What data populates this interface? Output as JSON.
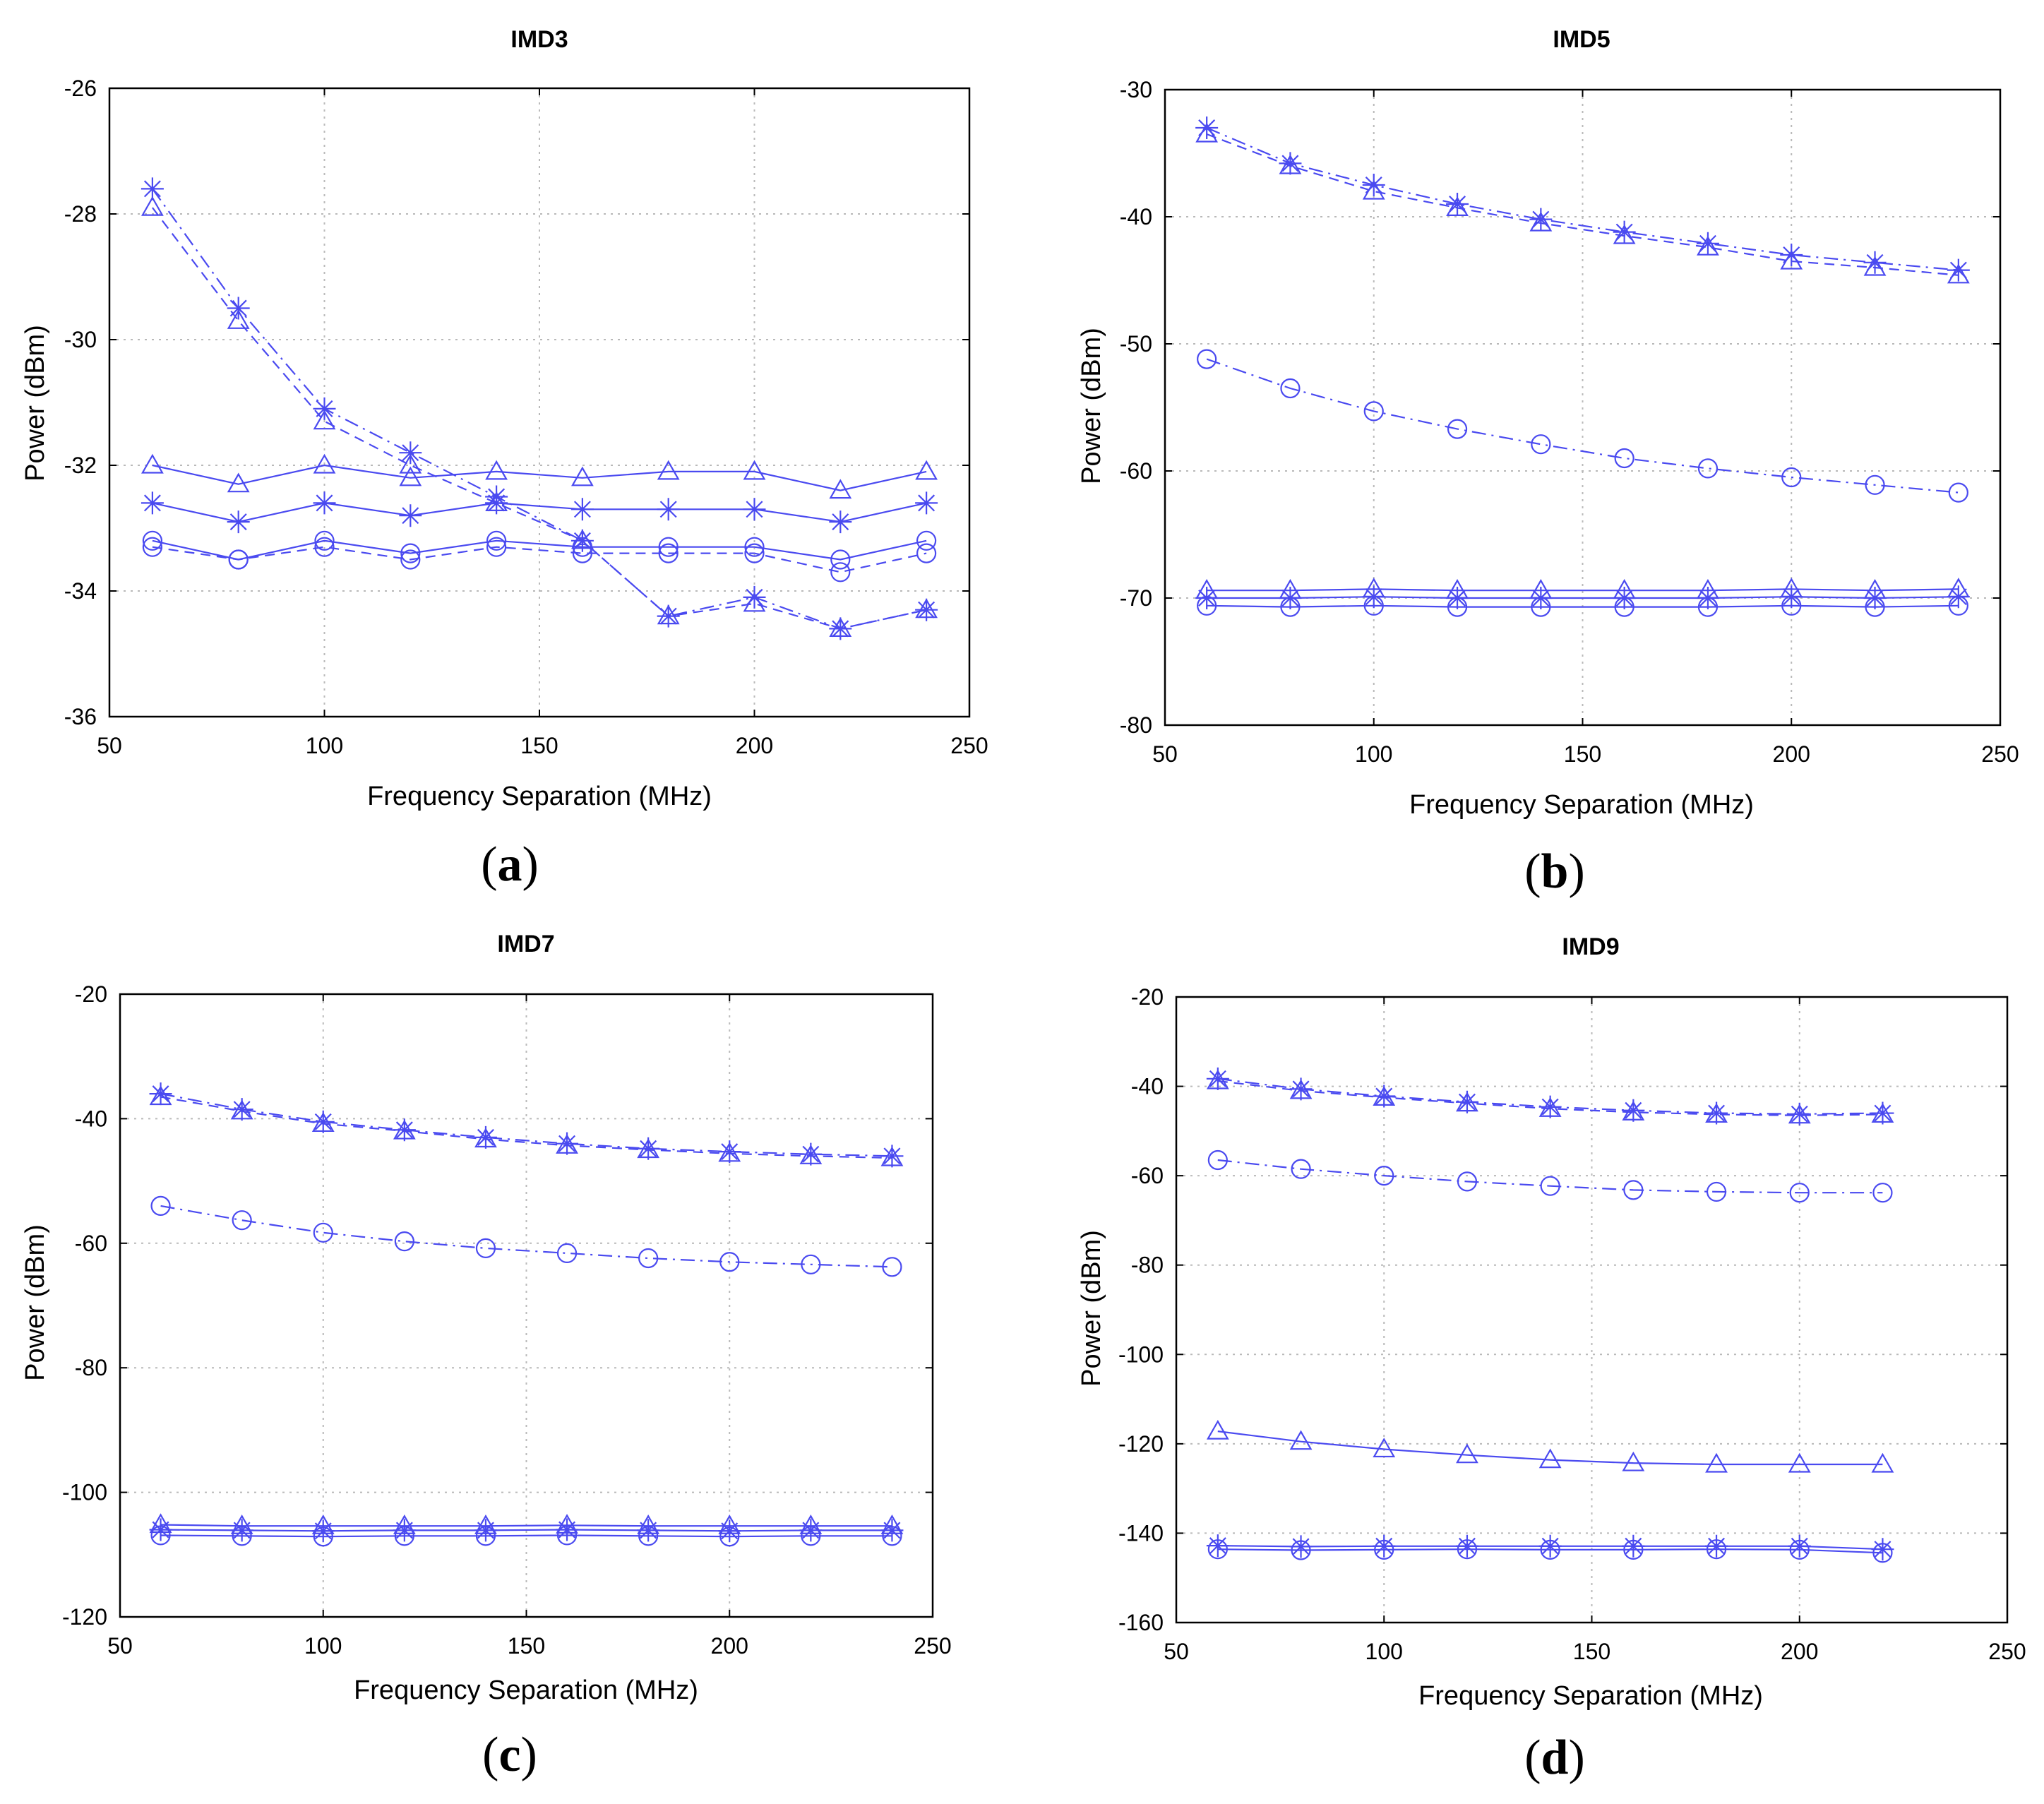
{
  "figure": {
    "panel_labels": [
      "a",
      "b",
      "c",
      "d"
    ],
    "series_color": "#4a4af0"
  },
  "chart_data": [
    {
      "type": "line",
      "title": "IMD3",
      "xlabel": "Frequency Separation (MHz)",
      "ylabel": "Power (dBm)",
      "xlim": [
        50,
        250
      ],
      "ylim": [
        -36,
        -26
      ],
      "xticks": [
        50,
        100,
        150,
        200,
        250
      ],
      "yticks": [
        -36,
        -34,
        -32,
        -30,
        -28,
        -26
      ],
      "grid": true,
      "x": [
        60,
        80,
        100,
        120,
        140,
        160,
        180,
        200,
        220,
        240
      ],
      "series": [
        {
          "name": "triangle-dashed",
          "marker": "triangle",
          "line": "dashed",
          "values": [
            -27.9,
            -29.7,
            -31.3,
            -32.0,
            -32.6,
            -33.2,
            -34.4,
            -34.2,
            -34.6,
            -34.3
          ]
        },
        {
          "name": "star-dashdot",
          "marker": "star",
          "line": "dashdot",
          "values": [
            -27.6,
            -29.5,
            -31.1,
            -31.8,
            -32.5,
            -33.2,
            -34.4,
            -34.1,
            -34.6,
            -34.3
          ]
        },
        {
          "name": "triangle-solid",
          "marker": "triangle",
          "line": "solid",
          "values": [
            -32.0,
            -32.3,
            -32.0,
            -32.2,
            -32.1,
            -32.2,
            -32.1,
            -32.1,
            -32.4,
            -32.1
          ]
        },
        {
          "name": "star-solid",
          "marker": "star",
          "line": "solid",
          "values": [
            -32.6,
            -32.9,
            -32.6,
            -32.8,
            -32.6,
            -32.7,
            -32.7,
            -32.7,
            -32.9,
            -32.6
          ]
        },
        {
          "name": "circle-solid",
          "marker": "circle",
          "line": "solid",
          "values": [
            -33.2,
            -33.5,
            -33.2,
            -33.4,
            -33.2,
            -33.3,
            -33.3,
            -33.3,
            -33.5,
            -33.2
          ]
        },
        {
          "name": "circle-dashed",
          "marker": "circle",
          "line": "dashed",
          "values": [
            -33.3,
            -33.5,
            -33.3,
            -33.5,
            -33.3,
            -33.4,
            -33.4,
            -33.4,
            -33.7,
            -33.4
          ]
        }
      ]
    },
    {
      "type": "line",
      "title": "IMD5",
      "xlabel": "Frequency Separation (MHz)",
      "ylabel": "Power (dBm)",
      "xlim": [
        50,
        250
      ],
      "ylim": [
        -80,
        -30
      ],
      "xticks": [
        50,
        100,
        150,
        200,
        250
      ],
      "yticks": [
        -80,
        -70,
        -60,
        -50,
        -40,
        -30
      ],
      "grid": true,
      "x": [
        60,
        80,
        100,
        120,
        140,
        160,
        180,
        200,
        220,
        240
      ],
      "series": [
        {
          "name": "triangle-dashed",
          "marker": "triangle",
          "line": "dashed",
          "values": [
            -33.5,
            -36.0,
            -38.0,
            -39.3,
            -40.5,
            -41.5,
            -42.4,
            -43.5,
            -44.0,
            -44.6
          ]
        },
        {
          "name": "star-dashdot",
          "marker": "star",
          "line": "dashdot",
          "values": [
            -33.0,
            -35.8,
            -37.5,
            -39.0,
            -40.2,
            -41.2,
            -42.1,
            -43.0,
            -43.6,
            -44.2
          ]
        },
        {
          "name": "circle-dashdot",
          "marker": "circle",
          "line": "dashdot",
          "values": [
            -51.2,
            -53.5,
            -55.3,
            -56.7,
            -57.9,
            -59.0,
            -59.8,
            -60.5,
            -61.1,
            -61.7
          ]
        },
        {
          "name": "triangle-solid",
          "marker": "triangle",
          "line": "solid",
          "values": [
            -69.4,
            -69.4,
            -69.3,
            -69.4,
            -69.4,
            -69.4,
            -69.4,
            -69.3,
            -69.4,
            -69.3
          ]
        },
        {
          "name": "star-solid",
          "marker": "star",
          "line": "solid",
          "values": [
            -70.0,
            -70.0,
            -69.9,
            -70.0,
            -70.0,
            -70.0,
            -70.0,
            -69.9,
            -70.0,
            -69.9
          ]
        },
        {
          "name": "circle-solid",
          "marker": "circle",
          "line": "solid",
          "values": [
            -70.6,
            -70.7,
            -70.6,
            -70.7,
            -70.7,
            -70.7,
            -70.7,
            -70.6,
            -70.7,
            -70.6
          ]
        }
      ]
    },
    {
      "type": "line",
      "title": "IMD7",
      "xlabel": "Frequency Separation (MHz)",
      "ylabel": "Power (dBm)",
      "xlim": [
        50,
        250
      ],
      "ylim": [
        -120,
        -20
      ],
      "xticks": [
        50,
        100,
        150,
        200,
        250
      ],
      "yticks": [
        -120,
        -100,
        -80,
        -60,
        -40,
        -20
      ],
      "grid": true,
      "x": [
        60,
        80,
        100,
        120,
        140,
        160,
        180,
        200,
        220,
        240
      ],
      "series": [
        {
          "name": "triangle-dashed",
          "marker": "triangle",
          "line": "dashed",
          "values": [
            -36.5,
            -38.8,
            -40.8,
            -42.0,
            -43.3,
            -44.3,
            -45.0,
            -45.6,
            -46.0,
            -46.3
          ]
        },
        {
          "name": "star-dashdot",
          "marker": "star",
          "line": "dashdot",
          "values": [
            -36.0,
            -38.5,
            -40.5,
            -41.8,
            -43.0,
            -44.0,
            -44.8,
            -45.3,
            -45.7,
            -46.0
          ]
        },
        {
          "name": "circle-dashdot",
          "marker": "circle",
          "line": "dashdot",
          "values": [
            -54.0,
            -56.3,
            -58.3,
            -59.7,
            -60.8,
            -61.6,
            -62.4,
            -63.0,
            -63.4,
            -63.8
          ]
        },
        {
          "name": "triangle-solid",
          "marker": "triangle",
          "line": "solid",
          "values": [
            -105.2,
            -105.4,
            -105.4,
            -105.4,
            -105.4,
            -105.3,
            -105.4,
            -105.4,
            -105.4,
            -105.4
          ]
        },
        {
          "name": "star-solid",
          "marker": "star",
          "line": "solid",
          "values": [
            -106.0,
            -106.1,
            -106.2,
            -106.1,
            -106.1,
            -106.0,
            -106.1,
            -106.2,
            -106.1,
            -106.1
          ]
        },
        {
          "name": "circle-solid",
          "marker": "circle",
          "line": "solid",
          "values": [
            -106.9,
            -107.0,
            -107.1,
            -107.0,
            -107.0,
            -106.9,
            -107.0,
            -107.1,
            -107.0,
            -107.0
          ]
        }
      ]
    },
    {
      "type": "line",
      "title": "IMD9",
      "xlabel": "Frequency Separation (MHz)",
      "ylabel": "Power (dBm)",
      "xlim": [
        50,
        250
      ],
      "ylim": [
        -160,
        -20
      ],
      "xticks": [
        50,
        100,
        150,
        200,
        250
      ],
      "yticks": [
        -160,
        -140,
        -120,
        -100,
        -80,
        -60,
        -40,
        -20
      ],
      "grid": true,
      "x": [
        60,
        80,
        100,
        120,
        140,
        160,
        180,
        200,
        220
      ],
      "series": [
        {
          "name": "triangle-dashed",
          "marker": "triangle",
          "line": "dashed",
          "values": [
            -38.8,
            -41.0,
            -42.5,
            -43.8,
            -45.0,
            -45.8,
            -46.3,
            -46.5,
            -46.3
          ]
        },
        {
          "name": "star-dashdot",
          "marker": "star",
          "line": "dashdot",
          "values": [
            -38.3,
            -40.6,
            -42.2,
            -43.5,
            -44.6,
            -45.4,
            -46.0,
            -46.2,
            -46.0
          ]
        },
        {
          "name": "circle-dashdot",
          "marker": "circle",
          "line": "dashdot",
          "values": [
            -56.5,
            -58.5,
            -60.0,
            -61.3,
            -62.3,
            -63.2,
            -63.6,
            -63.8,
            -63.8
          ]
        },
        {
          "name": "triangle-solid",
          "marker": "triangle",
          "line": "solid",
          "values": [
            -117.2,
            -119.5,
            -121.2,
            -122.5,
            -123.6,
            -124.3,
            -124.6,
            -124.6,
            -124.6
          ]
        },
        {
          "name": "star-solid",
          "marker": "star",
          "line": "solid",
          "values": [
            -142.8,
            -143.0,
            -142.9,
            -142.9,
            -142.9,
            -142.9,
            -142.9,
            -142.9,
            -143.6
          ]
        },
        {
          "name": "circle-solid",
          "marker": "circle",
          "line": "solid",
          "values": [
            -143.6,
            -143.8,
            -143.7,
            -143.6,
            -143.7,
            -143.7,
            -143.6,
            -143.7,
            -144.4
          ]
        }
      ]
    }
  ]
}
